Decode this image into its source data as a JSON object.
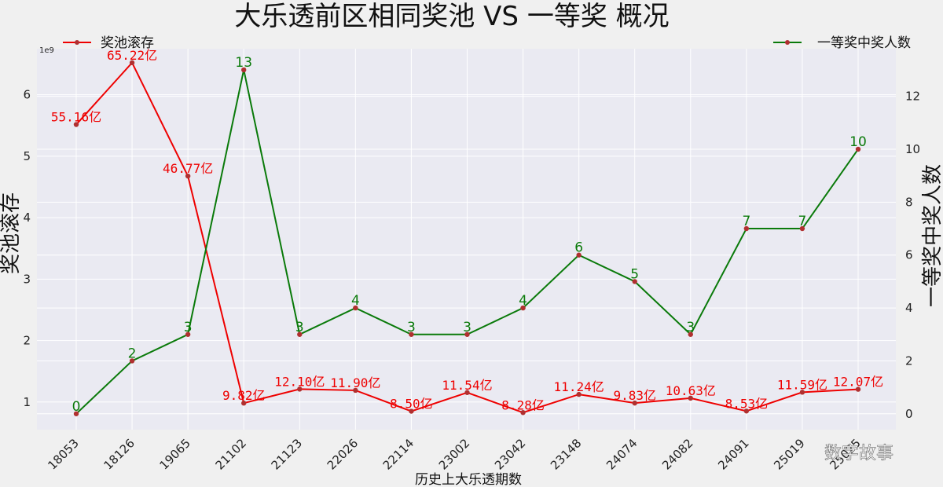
{
  "chart_data": {
    "type": "line",
    "title": "大乐透前区相同奖池 VS 一等奖 概况",
    "xlabel": "历史上大乐透期数",
    "ylabel": "奖池滚存",
    "ylabel_right": "一等奖中奖人数",
    "y_sci_label": "1e9",
    "categories": [
      "18053",
      "18126",
      "19065",
      "21102",
      "21123",
      "22026",
      "22114",
      "23002",
      "23042",
      "23148",
      "24074",
      "24082",
      "24091",
      "25019",
      "25025"
    ],
    "ylim": [
      0.55,
      6.75
    ],
    "yticks": [
      "1",
      "2",
      "3",
      "4",
      "5",
      "6"
    ],
    "ylim_right": [
      -0.6,
      13.8
    ],
    "yticks_right": [
      "0",
      "2",
      "4",
      "6",
      "8",
      "10",
      "12"
    ],
    "grid": true,
    "series": [
      {
        "name": "奖池滚存",
        "axis": "left",
        "color": "#ee0000",
        "values": [
          5.516,
          6.522,
          4.677,
          0.982,
          1.21,
          1.19,
          0.85,
          1.154,
          0.828,
          1.124,
          0.983,
          1.063,
          0.853,
          1.159,
          1.207
        ],
        "labels": [
          "55.16亿",
          "65.22亿",
          "46.77亿",
          "9.82亿",
          "12.10亿",
          "11.90亿",
          "8.50亿",
          "11.54亿",
          "8.28亿",
          "11.24亿",
          "9.83亿",
          "10.63亿",
          "8.53亿",
          "11.59亿",
          "12.07亿"
        ]
      },
      {
        "name": "一等奖中奖人数",
        "axis": "right",
        "color": "#0a7a0a",
        "values": [
          0,
          2,
          3,
          13,
          3,
          4,
          3,
          3,
          4,
          6,
          5,
          3,
          7,
          7,
          10
        ],
        "labels": [
          "0",
          "2",
          "3",
          "13",
          "3",
          "4",
          "3",
          "3",
          "4",
          "6",
          "5",
          "3",
          "7",
          "7",
          "10"
        ]
      }
    ],
    "legend": [
      "top-left",
      "top-right"
    ]
  },
  "watermark": "数字故事"
}
